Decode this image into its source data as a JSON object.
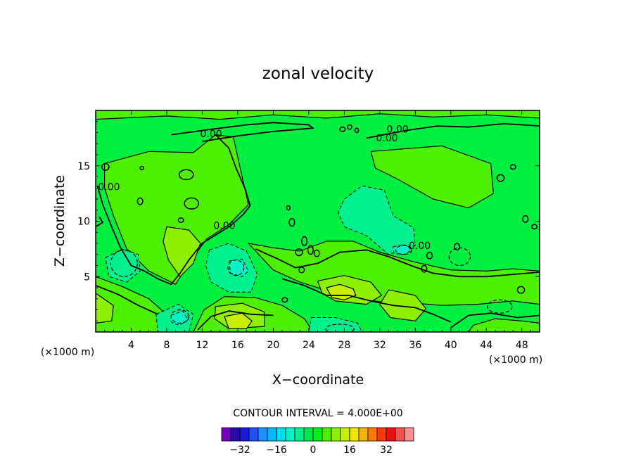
{
  "chart_data": {
    "type": "contour",
    "title": "zonal velocity",
    "xlabel": "X−coordinate",
    "ylabel": "Z−coordinate",
    "x_unit_left": "(×1000 m)",
    "x_unit_right": "(×1000 m)",
    "xlim": [
      0,
      50
    ],
    "ylim": [
      0,
      20
    ],
    "x_ticks": [
      4,
      8,
      12,
      16,
      20,
      24,
      28,
      32,
      36,
      40,
      44,
      48
    ],
    "x_tick_labels": [
      "4",
      "8",
      "12",
      "16",
      "20",
      "24",
      "28",
      "32",
      "36",
      "40",
      "44",
      "48"
    ],
    "y_ticks": [
      5,
      10,
      15
    ],
    "y_tick_labels": [
      "5",
      "10",
      "15"
    ],
    "contour_interval_text": "CONTOUR INTERVAL = 4.000E+00",
    "contour_labels": [
      {
        "text": "0.00",
        "x": 13,
        "z": 17.6
      },
      {
        "text": "0.00",
        "x": 34,
        "z": 18.0
      },
      {
        "text": "0.00",
        "x": 32.8,
        "z": 17.2
      },
      {
        "text": "0.00",
        "x": 1.5,
        "z": 12.8
      },
      {
        "text": "0.00",
        "x": 14.5,
        "z": 9.3
      },
      {
        "text": "0.00",
        "x": 36.5,
        "z": 7.5
      }
    ],
    "colorbar": {
      "colors": [
        "#7700bb",
        "#2a0aa8",
        "#1a1ad6",
        "#1f4fff",
        "#1f8fff",
        "#00b7ff",
        "#00ddee",
        "#00f5c8",
        "#00f090",
        "#00e84a",
        "#00f01a",
        "#4cf000",
        "#8cf000",
        "#c8f000",
        "#f0e600",
        "#f5b400",
        "#ff7a00",
        "#ff3a00",
        "#ee1010",
        "#f55050",
        "#f59090"
      ],
      "tick_values": [
        -32,
        -16,
        0,
        16,
        32
      ],
      "tick_labels": [
        "−32",
        "−16",
        "0",
        "16",
        "32"
      ]
    },
    "field_colors": {
      "background_zero": "#00f040",
      "pos_4": "#4cf000",
      "pos_8": "#8cf000",
      "pos_12": "#c8f000",
      "neg_4": "#00f090",
      "neg_8": "#00f5c8",
      "neg_12": "#00ddee"
    },
    "regions": [
      {
        "level": "pos_4",
        "poly": [
          [
            0,
            20
          ],
          [
            50,
            20
          ],
          [
            50,
            19.3
          ],
          [
            44,
            19.6
          ],
          [
            38,
            19.4
          ],
          [
            32,
            19.7
          ],
          [
            26,
            19.3
          ],
          [
            20,
            19.6
          ],
          [
            14,
            19.2
          ],
          [
            8,
            19.5
          ],
          [
            0,
            19.2
          ]
        ]
      },
      {
        "level": "pos_4",
        "poly": [
          [
            1,
            15.2
          ],
          [
            6,
            16.3
          ],
          [
            11,
            16.2
          ],
          [
            13.5,
            17.8
          ],
          [
            15.5,
            17.6
          ],
          [
            16.5,
            14
          ],
          [
            17.2,
            11.5
          ],
          [
            15,
            9.7
          ],
          [
            12.5,
            8.4
          ],
          [
            10.5,
            6.2
          ],
          [
            9,
            4.3
          ],
          [
            6,
            5.5
          ],
          [
            3.5,
            7.5
          ],
          [
            2,
            10.5
          ],
          [
            1,
            13
          ]
        ]
      },
      {
        "level": "pos_4",
        "poly": [
          [
            31,
            16.3
          ],
          [
            39,
            16.8
          ],
          [
            44.5,
            15.2
          ],
          [
            44.8,
            12.5
          ],
          [
            42,
            11.2
          ],
          [
            38,
            12
          ],
          [
            34,
            13.8
          ],
          [
            31.5,
            14.8
          ]
        ]
      },
      {
        "level": "pos_4",
        "poly": [
          [
            0,
            5
          ],
          [
            3,
            4.1
          ],
          [
            6,
            3
          ],
          [
            8.5,
            1.2
          ],
          [
            9.5,
            0
          ],
          [
            0,
            0
          ]
        ]
      },
      {
        "level": "pos_4",
        "poly": [
          [
            11,
            0
          ],
          [
            12.2,
            2
          ],
          [
            14.5,
            3.2
          ],
          [
            18,
            3.1
          ],
          [
            21,
            2.4
          ],
          [
            23.5,
            1.2
          ],
          [
            24.5,
            0
          ]
        ]
      },
      {
        "level": "pos_4",
        "poly": [
          [
            17.2,
            8
          ],
          [
            20,
            7.6
          ],
          [
            23,
            7.3
          ],
          [
            26,
            8.2
          ],
          [
            29,
            8.2
          ],
          [
            32,
            7.2
          ],
          [
            36,
            6.3
          ],
          [
            40,
            5.6
          ],
          [
            44,
            5.5
          ],
          [
            47,
            5.7
          ],
          [
            50,
            5.5
          ],
          [
            50,
            2.5
          ],
          [
            47,
            2.8
          ],
          [
            43,
            2.5
          ],
          [
            39,
            2.4
          ],
          [
            36,
            2.6
          ],
          [
            33,
            2.6
          ],
          [
            30,
            3
          ],
          [
            27,
            3.5
          ],
          [
            23,
            4.5
          ],
          [
            20,
            5.6
          ]
        ]
      },
      {
        "level": "pos_4",
        "poly": [
          [
            42,
            0
          ],
          [
            42.5,
            0.6
          ],
          [
            45,
            1.2
          ],
          [
            48,
            1
          ],
          [
            50,
            0.8
          ],
          [
            50,
            0
          ]
        ]
      },
      {
        "level": "pos_8",
        "poly": [
          [
            8,
            9.5
          ],
          [
            10.5,
            9.2
          ],
          [
            11.8,
            8
          ],
          [
            11,
            6.2
          ],
          [
            9.5,
            5
          ],
          [
            8.2,
            6.5
          ],
          [
            7.6,
            8.2
          ]
        ]
      },
      {
        "level": "pos_8",
        "poly": [
          [
            33,
            3.8
          ],
          [
            36,
            3.3
          ],
          [
            37.2,
            2.1
          ],
          [
            36,
            1
          ],
          [
            33.2,
            1.3
          ],
          [
            32,
            2.5
          ]
        ]
      },
      {
        "level": "pos_8",
        "poly": [
          [
            0,
            3.5
          ],
          [
            2,
            2.4
          ],
          [
            1.8,
            1
          ],
          [
            0,
            0.8
          ]
        ]
      },
      {
        "level": "pos_8",
        "poly": [
          [
            13.5,
            2.3
          ],
          [
            16.5,
            2.6
          ],
          [
            19,
            1.8
          ],
          [
            19,
            0.5
          ],
          [
            15,
            0.3
          ],
          [
            13.4,
            1.2
          ]
        ]
      },
      {
        "level": "pos_8",
        "poly": [
          [
            25,
            4.6
          ],
          [
            28,
            5.1
          ],
          [
            31,
            4.5
          ],
          [
            32.2,
            3.3
          ],
          [
            30.5,
            2.5
          ],
          [
            27,
            2.8
          ],
          [
            25.5,
            3.5
          ]
        ]
      },
      {
        "level": "pos_12",
        "poly": [
          [
            26,
            4
          ],
          [
            27.5,
            4.3
          ],
          [
            29,
            3.9
          ],
          [
            29.3,
            3.3
          ],
          [
            28,
            2.9
          ],
          [
            26.6,
            3.1
          ]
        ]
      },
      {
        "level": "pos_12",
        "poly": [
          [
            14.5,
            1.4
          ],
          [
            16.5,
            1.7
          ],
          [
            17.6,
            1
          ],
          [
            17,
            0.3
          ],
          [
            15,
            0.3
          ]
        ]
      },
      {
        "level": "neg_4",
        "poly": [
          [
            28,
            12
          ],
          [
            30,
            13.2
          ],
          [
            32.5,
            12.8
          ],
          [
            33.5,
            10.5
          ],
          [
            35.8,
            9.4
          ],
          [
            36,
            7.8
          ],
          [
            33,
            7
          ],
          [
            30.5,
            8.7
          ],
          [
            28,
            9.5
          ],
          [
            27.3,
            10.8
          ]
        ]
      },
      {
        "level": "neg_4",
        "poly": [
          [
            12.8,
            7.4
          ],
          [
            15,
            8
          ],
          [
            17,
            7.3
          ],
          [
            18.2,
            5.2
          ],
          [
            17.5,
            3.6
          ],
          [
            15,
            3.6
          ],
          [
            13,
            4.5
          ],
          [
            12.4,
            6
          ]
        ]
      },
      {
        "level": "neg_4",
        "poly": [
          [
            1.1,
            6.7
          ],
          [
            3,
            7.5
          ],
          [
            4.8,
            7
          ],
          [
            5,
            5.5
          ],
          [
            3.5,
            4.5
          ],
          [
            1.5,
            5
          ]
        ]
      },
      {
        "level": "neg_4",
        "poly": [
          [
            24.3,
            1.3
          ],
          [
            27,
            1.3
          ],
          [
            29.5,
            0.8
          ],
          [
            30,
            0
          ],
          [
            24,
            0
          ]
        ]
      },
      {
        "level": "neg_4",
        "poly": [
          [
            6.8,
            1.6
          ],
          [
            9.3,
            2.5
          ],
          [
            11,
            1.6
          ],
          [
            10.5,
            0
          ],
          [
            7,
            0
          ]
        ]
      },
      {
        "level": "neg_8",
        "poly": [
          [
            15,
            6.4
          ],
          [
            16.5,
            6.6
          ],
          [
            17.2,
            5.5
          ],
          [
            16.5,
            5
          ],
          [
            15.2,
            5.3
          ]
        ]
      },
      {
        "level": "neg_8",
        "poly": [
          [
            33.5,
            7.7
          ],
          [
            34.8,
            7.9
          ],
          [
            35.6,
            7.4
          ],
          [
            34.7,
            7
          ],
          [
            33.6,
            7.1
          ]
        ]
      },
      {
        "level": "neg_8",
        "poly": [
          [
            8.5,
            1.5
          ],
          [
            9.8,
            1.9
          ],
          [
            10.4,
            1.1
          ],
          [
            9.4,
            0.6
          ],
          [
            8.5,
            0.9
          ]
        ]
      }
    ],
    "zero_contours": [
      [
        [
          8.5,
          17.8
        ],
        [
          13,
          18.3
        ],
        [
          17,
          18.7
        ],
        [
          20,
          18.9
        ],
        [
          24,
          18.7
        ],
        [
          24.5,
          18.4
        ],
        [
          20,
          18.1
        ],
        [
          16,
          17.7
        ],
        [
          12,
          17.2
        ]
      ],
      [
        [
          30.5,
          17.5
        ],
        [
          35,
          18.2
        ],
        [
          38.5,
          18.6
        ],
        [
          42,
          18.5
        ],
        [
          46,
          18.8
        ],
        [
          50,
          18.6
        ]
      ],
      [
        [
          13.5,
          17.8
        ],
        [
          15,
          16.6
        ],
        [
          15.8,
          14.8
        ],
        [
          16.8,
          13
        ],
        [
          17.4,
          11.4
        ],
        [
          16.6,
          10.6
        ],
        [
          15.2,
          9.6
        ],
        [
          13.4,
          8.7
        ],
        [
          12,
          8
        ],
        [
          10.5,
          6.5
        ],
        [
          9.5,
          5.3
        ],
        [
          8.5,
          4.3
        ],
        [
          7,
          4.8
        ],
        [
          5.5,
          5.5
        ],
        [
          4,
          6
        ],
        [
          2.8,
          7.6
        ],
        [
          1.8,
          9.5
        ],
        [
          0.8,
          11.5
        ],
        [
          0.2,
          13.2
        ]
      ],
      [
        [
          0,
          9.5
        ],
        [
          0.8,
          9.9
        ],
        [
          0.4,
          10.4
        ]
      ],
      [
        [
          18,
          7.5
        ],
        [
          20.5,
          6.6
        ],
        [
          22.5,
          5.8
        ],
        [
          25,
          6.2
        ],
        [
          27.5,
          7.2
        ],
        [
          30.5,
          7.4
        ],
        [
          33,
          6.8
        ],
        [
          35.5,
          6
        ],
        [
          38,
          5.3
        ],
        [
          41,
          5
        ],
        [
          44,
          5
        ],
        [
          47,
          5.2
        ],
        [
          50,
          5.4
        ]
      ],
      [
        [
          21,
          4.8
        ],
        [
          23.5,
          4.2
        ],
        [
          26,
          3.3
        ],
        [
          28.5,
          3.3
        ],
        [
          31,
          2.8
        ],
        [
          33.5,
          2.4
        ],
        [
          36,
          2.2
        ],
        [
          38,
          1.6
        ],
        [
          40,
          0.9
        ]
      ],
      [
        [
          0,
          4.2
        ],
        [
          2.5,
          3.4
        ],
        [
          4.8,
          2.4
        ],
        [
          7,
          1.6
        ]
      ],
      [
        [
          11.5,
          0.2
        ],
        [
          13,
          1.4
        ],
        [
          15,
          1.9
        ],
        [
          17.5,
          1.6
        ],
        [
          20,
          1.5
        ]
      ],
      [
        [
          40,
          0.4
        ],
        [
          42,
          1.5
        ],
        [
          44.5,
          1.7
        ],
        [
          47.5,
          1.3
        ],
        [
          50,
          1.5
        ]
      ]
    ],
    "small_loops": [
      [
        10.2,
        14.2,
        0.8,
        0.45
      ],
      [
        10.8,
        11.6,
        0.8,
        0.5
      ],
      [
        21.7,
        11.2,
        0.2,
        0.2
      ],
      [
        22.1,
        9.9,
        0.3,
        0.35
      ],
      [
        23.5,
        8.2,
        0.3,
        0.4
      ],
      [
        22.9,
        7.2,
        0.4,
        0.3
      ],
      [
        24.2,
        7.4,
        0.3,
        0.4
      ],
      [
        24.9,
        7.1,
        0.3,
        0.3
      ],
      [
        23.2,
        5.6,
        0.3,
        0.25
      ],
      [
        27.8,
        18.3,
        0.3,
        0.2
      ],
      [
        28.6,
        18.5,
        0.25,
        0.2
      ],
      [
        29.4,
        18.2,
        0.2,
        0.2
      ],
      [
        37,
        5.7,
        0.3,
        0.3
      ],
      [
        37.6,
        6.9,
        0.3,
        0.3
      ],
      [
        45.6,
        13.9,
        0.4,
        0.3
      ],
      [
        47,
        14.9,
        0.3,
        0.2
      ],
      [
        48.4,
        10.2,
        0.3,
        0.3
      ],
      [
        49.4,
        9.5,
        0.3,
        0.2
      ],
      [
        40.7,
        7.7,
        0.3,
        0.3
      ],
      [
        1.1,
        14.9,
        0.4,
        0.3
      ],
      [
        5,
        11.8,
        0.3,
        0.3
      ],
      [
        9.6,
        10.1,
        0.3,
        0.2
      ],
      [
        47.9,
        3.8,
        0.4,
        0.3
      ],
      [
        5.2,
        14.8,
        0.2,
        0.15
      ],
      [
        21.3,
        2.9,
        0.3,
        0.2
      ]
    ],
    "dashed_loops": [
      [
        15.8,
        5.8,
        0.9,
        0.7
      ],
      [
        34.7,
        7.4,
        0.9,
        0.4
      ],
      [
        9.5,
        1.4,
        1.0,
        0.6
      ],
      [
        27.5,
        0.3,
        1.6,
        0.4
      ],
      [
        3.2,
        6.2,
        1.5,
        1.2
      ],
      [
        41,
        6.8,
        1.2,
        0.8
      ],
      [
        45.5,
        2.3,
        1.4,
        0.6
      ]
    ]
  }
}
